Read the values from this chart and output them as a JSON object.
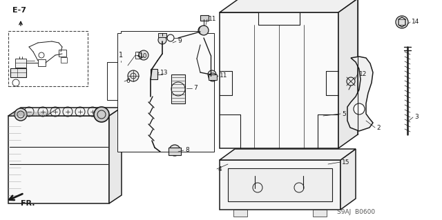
{
  "bg_color": "#ffffff",
  "line_color": "#1a1a1a",
  "fig_width": 6.4,
  "fig_height": 3.19,
  "dpi": 100,
  "title_code": "S9AJ  B0600",
  "ref_code": "E-7",
  "fr_label": "FR."
}
